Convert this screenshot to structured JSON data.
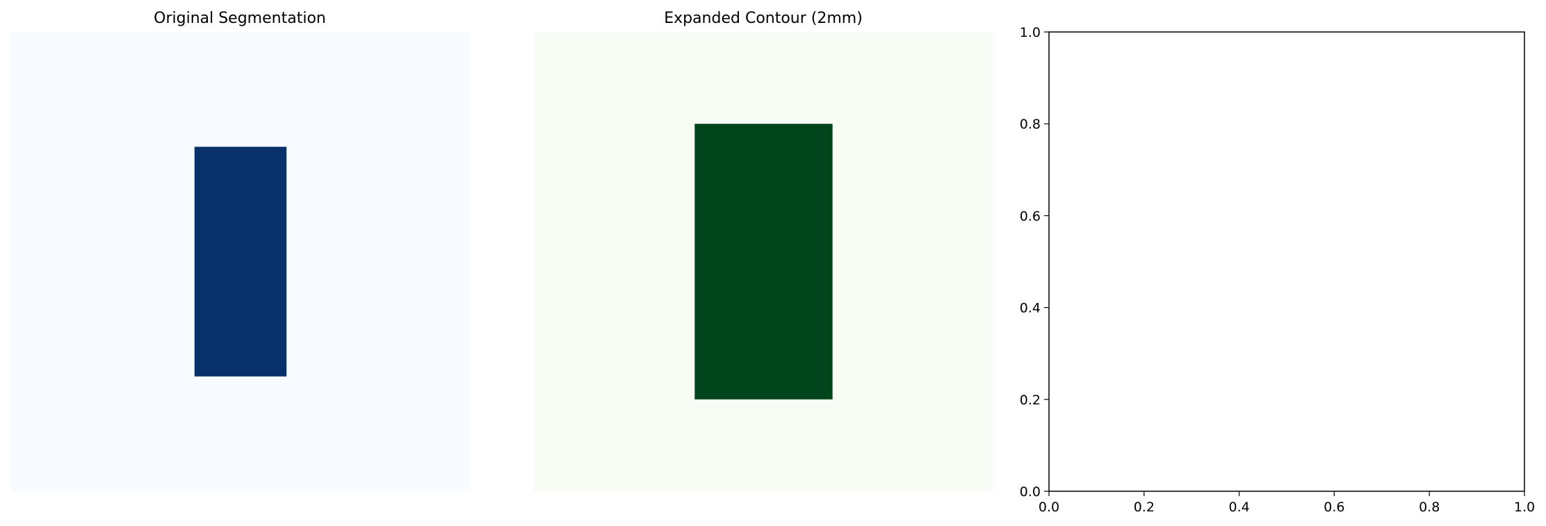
{
  "chart_data": [
    {
      "type": "heatmap",
      "title": "Original Segmentation",
      "axes_visible": false,
      "image": {
        "cols": 100,
        "rows": 100,
        "background_color": "#f7fbff",
        "mask_color": "#08306b",
        "mask_region": {
          "x": [
            40,
            60
          ],
          "y": [
            25,
            75
          ]
        }
      }
    },
    {
      "type": "heatmap",
      "title": "Expanded Contour (2mm)",
      "axes_visible": false,
      "image": {
        "cols": 100,
        "rows": 100,
        "background_color": "#f7fcf5",
        "mask_color": "#00441b",
        "mask_region": {
          "x": [
            35,
            65
          ],
          "y": [
            20,
            80
          ]
        }
      }
    },
    {
      "type": "line",
      "title": "",
      "series": [],
      "xlim": [
        0.0,
        1.0
      ],
      "ylim": [
        0.0,
        1.0
      ],
      "x_ticks": [
        "0.0",
        "0.2",
        "0.4",
        "0.6",
        "0.8",
        "1.0"
      ],
      "y_ticks": [
        "0.0",
        "0.2",
        "0.4",
        "0.6",
        "0.8",
        "1.0"
      ],
      "grid": false
    }
  ]
}
